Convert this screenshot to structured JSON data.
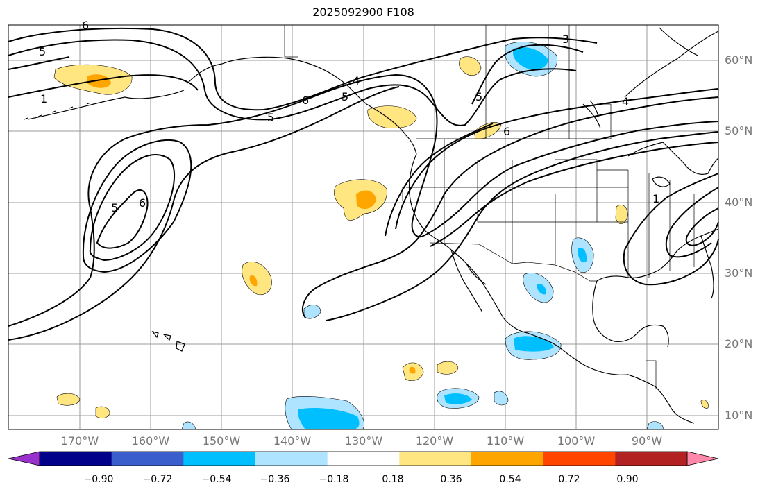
{
  "title": "2025092900 F108",
  "lat_labels": [
    "60°N",
    "50°N",
    "40°N",
    "30°N",
    "20°N",
    "10°N"
  ],
  "lon_labels": [
    "170°W",
    "160°W",
    "150°W",
    "140°W",
    "130°W",
    "120°W",
    "110°W",
    "100°W",
    "90°W"
  ],
  "contour_labels": [
    "5",
    "5",
    "6",
    "5",
    "6",
    "1",
    "5",
    "6",
    "4",
    "5",
    "6",
    "3",
    "4",
    "1"
  ],
  "colorbar": {
    "ticks": [
      "−0.90",
      "−0.72",
      "−0.54",
      "−0.36",
      "−0.18",
      "0.18",
      "0.36",
      "0.54",
      "0.72",
      "0.90"
    ],
    "colors": [
      "#9932cc",
      "#00008b",
      "#3a5fcd",
      "#00bfff",
      "#aee4ff",
      "#ffffff",
      "#ffe680",
      "#ffa500",
      "#ff4500",
      "#b22222",
      "#ff88aa"
    ]
  }
}
